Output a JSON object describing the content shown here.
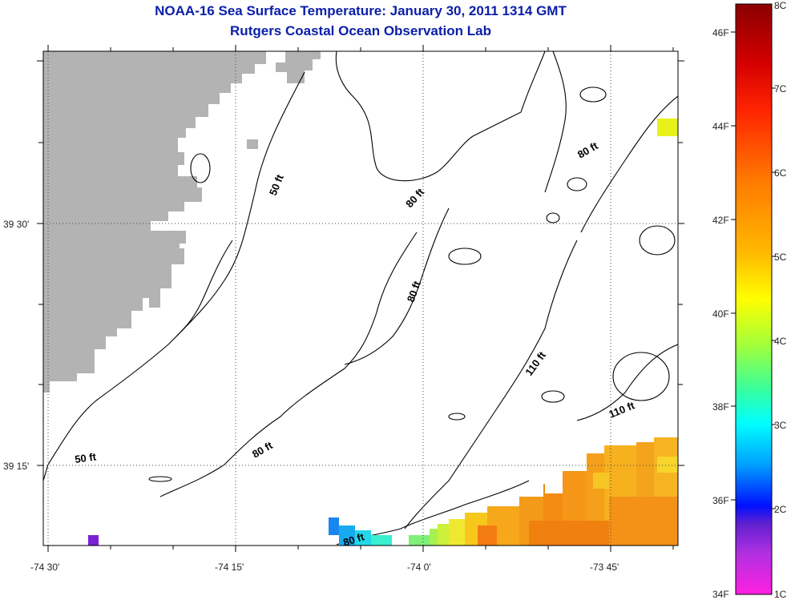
{
  "header": {
    "title": "NOAA-16 Sea Surface Temperature:  January 30, 2011 1314 GMT",
    "subtitle": "Rutgers Coastal Ocean Observation Lab"
  },
  "map": {
    "x_ticks": [
      "-74 30'",
      "-74 15'",
      "-74 0'",
      "-73 45'"
    ],
    "y_ticks": [
      "39 30'",
      "39 15'"
    ],
    "contour_labels": [
      "50 ft",
      "50 ft",
      "80 ft",
      "80 ft",
      "80 ft",
      "80 ft",
      "80 ft",
      "110 ft",
      "110 ft"
    ],
    "land_color": "#b3b3b3"
  },
  "colorbar": {
    "fahrenheit_labels": [
      "46F",
      "44F",
      "42F",
      "40F",
      "38F",
      "36F",
      "34F"
    ],
    "celsius_labels": [
      "8C",
      "7C",
      "6C",
      "5C",
      "4C",
      "3C",
      "2C",
      "1C"
    ]
  }
}
